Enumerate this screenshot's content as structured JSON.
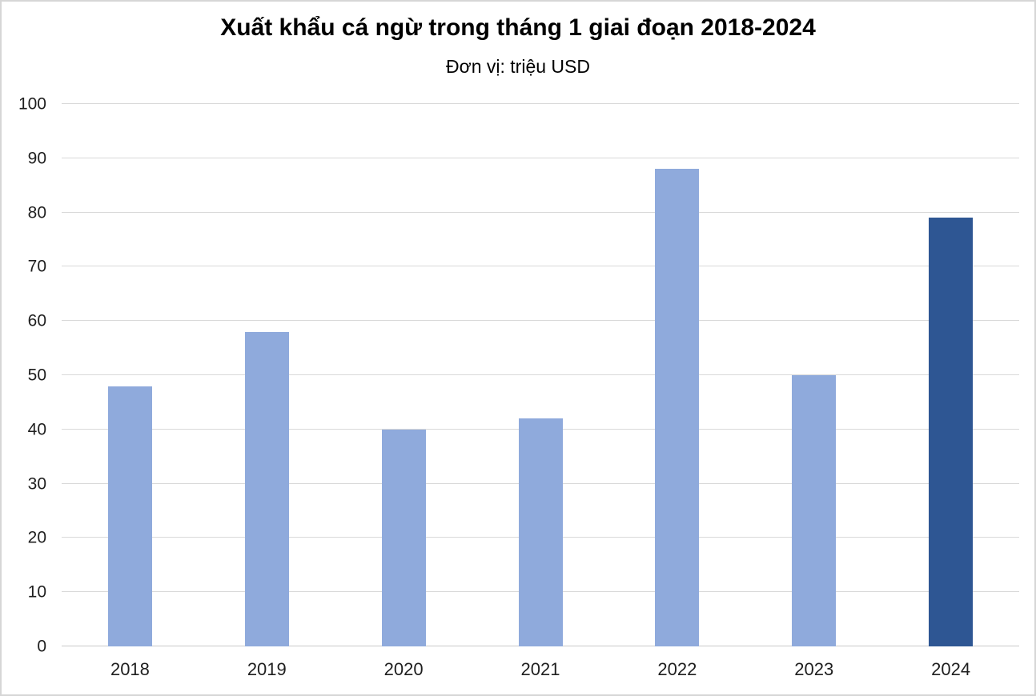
{
  "chart_data": {
    "type": "bar",
    "title": "Xuất khẩu cá ngừ trong tháng 1 giai đoạn 2018-2024",
    "subtitle": "Đơn vị: triệu USD",
    "categories": [
      "2018",
      "2019",
      "2020",
      "2021",
      "2022",
      "2023",
      "2024"
    ],
    "values": [
      48,
      58,
      40,
      42,
      88,
      50,
      79
    ],
    "xlabel": "",
    "ylabel": "",
    "ylim": [
      0,
      100
    ],
    "yticks": [
      0,
      10,
      20,
      30,
      40,
      50,
      60,
      70,
      80,
      90,
      100
    ],
    "grid": true,
    "legend_position": "none",
    "bar_color": "#8FAADC",
    "highlight_color": "#2E5693",
    "highlight_index": 6,
    "gridline_color": "#D9D9D9",
    "axis_line_color": "#C8C8C8",
    "text_color": "#1F1F1F",
    "frame_border_color": "#D6D6D6"
  }
}
